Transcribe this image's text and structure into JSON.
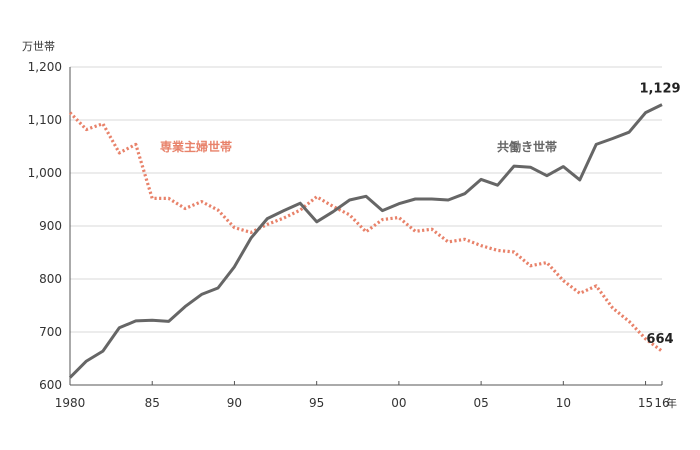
{
  "chart_data": {
    "type": "line",
    "yunit": "万世帯",
    "xunit": "年",
    "ylim": [
      600,
      1200
    ],
    "yticks": [
      600,
      700,
      800,
      900,
      1000,
      1100,
      1200
    ],
    "ytick_labels": [
      "600",
      "700",
      "800",
      "900",
      "1,000",
      "1,100",
      "1,200"
    ],
    "xlim": [
      1980,
      2016
    ],
    "xticks": [
      1980,
      1985,
      1990,
      1995,
      2000,
      2005,
      2010,
      2015,
      2016
    ],
    "xtick_labels": [
      "1980",
      "85",
      "90",
      "95",
      "00",
      "05",
      "10",
      "15",
      "16"
    ],
    "grid": "horizontal",
    "x": [
      1980,
      1981,
      1982,
      1983,
      1984,
      1985,
      1986,
      1987,
      1988,
      1989,
      1990,
      1991,
      1992,
      1993,
      1994,
      1995,
      1996,
      1997,
      1998,
      1999,
      2000,
      2001,
      2002,
      2003,
      2004,
      2005,
      2006,
      2007,
      2008,
      2009,
      2010,
      2011,
      2012,
      2013,
      2014,
      2015,
      2016
    ],
    "series": [
      {
        "name": "専業主婦世帯",
        "color": "#e8826a",
        "style": "dotted",
        "values": [
          1114,
          1082,
          1093,
          1038,
          1054,
          952,
          952,
          933,
          946,
          930,
          897,
          888,
          903,
          915,
          930,
          955,
          937,
          921,
          889,
          912,
          916,
          890,
          894,
          870,
          875,
          863,
          854,
          851,
          825,
          831,
          797,
          773,
          787,
          745,
          720,
          687,
          664
        ],
        "end_label": "664"
      },
      {
        "name": "共働き世帯",
        "color": "#666666",
        "style": "solid",
        "values": [
          614,
          645,
          664,
          708,
          721,
          722,
          720,
          748,
          771,
          783,
          823,
          877,
          914,
          929,
          943,
          908,
          927,
          949,
          956,
          929,
          942,
          951,
          951,
          949,
          961,
          988,
          977,
          1013,
          1011,
          995,
          1012,
          987,
          1054,
          1065,
          1077,
          1114,
          1129
        ],
        "end_label": "1,129"
      }
    ]
  }
}
